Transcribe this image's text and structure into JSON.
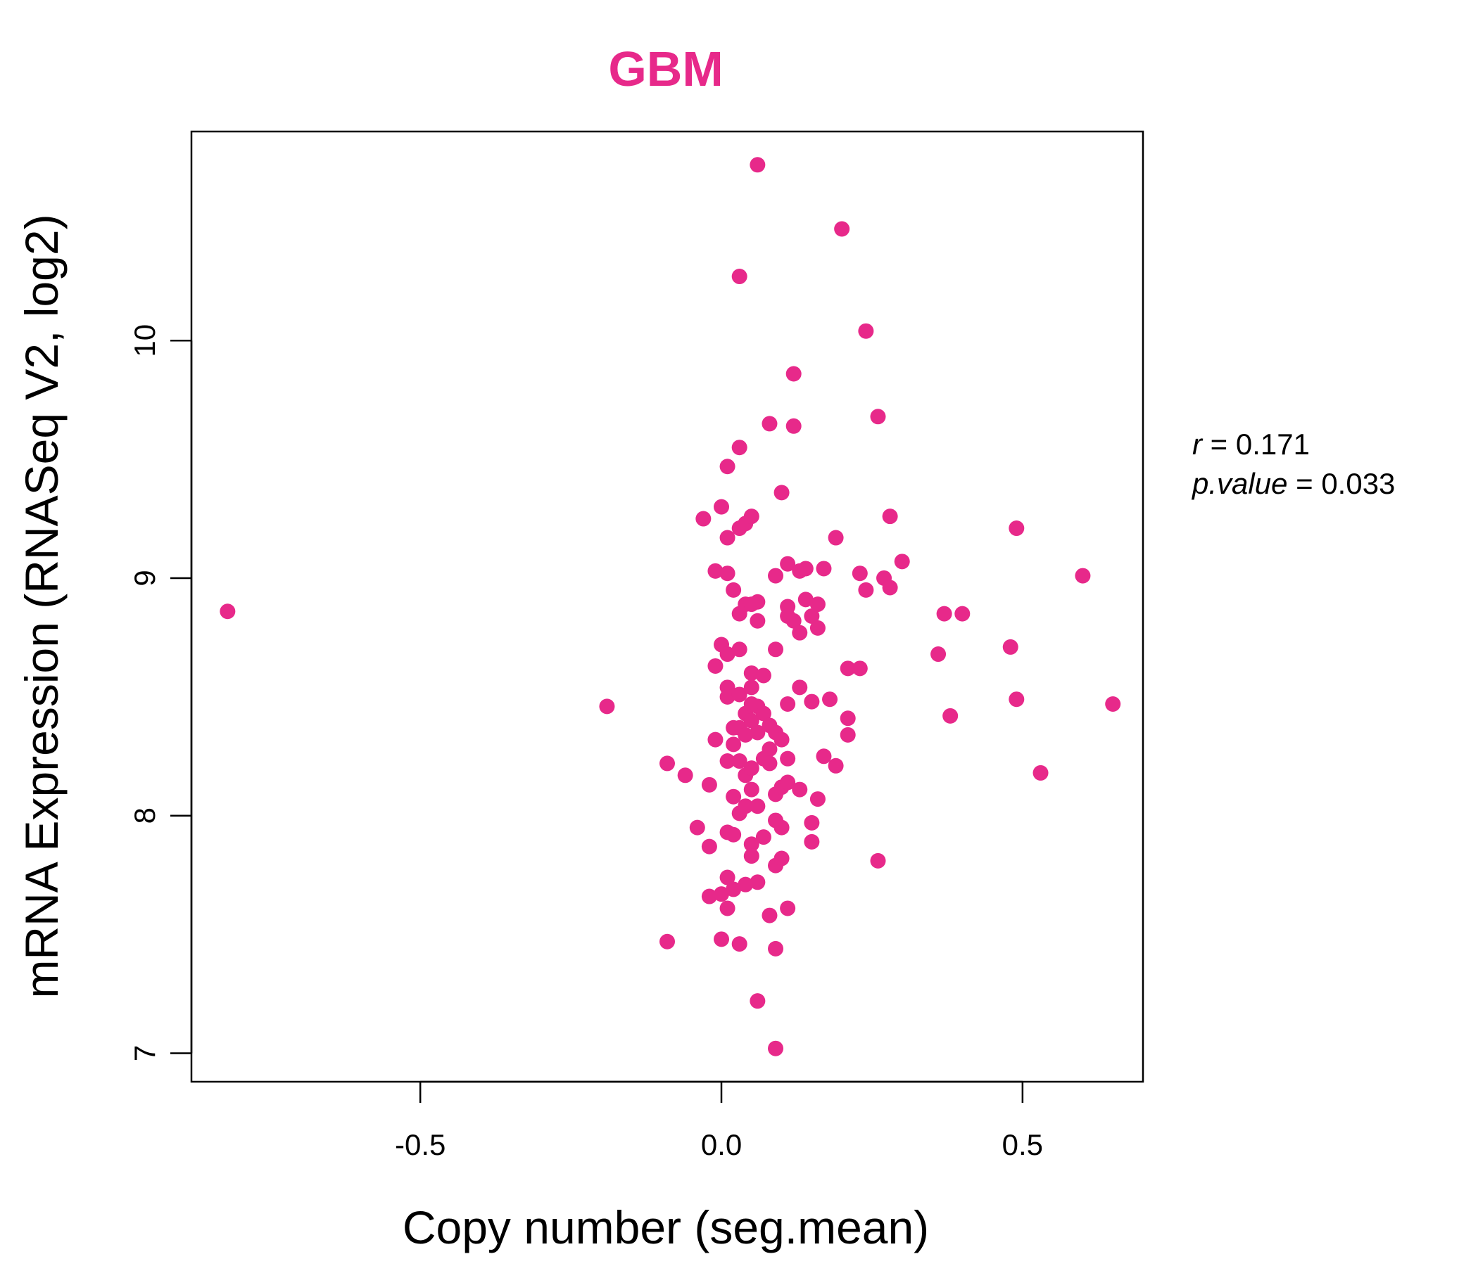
{
  "chart_data": {
    "type": "scatter",
    "title": "GBM",
    "xlabel": "Copy number (seg.mean)",
    "ylabel": "mRNA Expression (RNASeq V2, log2)",
    "xlim": [
      -0.88,
      0.7
    ],
    "ylim": [
      6.88,
      10.88
    ],
    "xticks": [
      "-0.5",
      "0.0",
      "0.5"
    ],
    "yticks": [
      "7",
      "8",
      "9",
      "10"
    ],
    "point_color": "#E7298A",
    "stats": {
      "r_label": "r",
      "r_value": "0.171",
      "p_label": "p.value",
      "p_value": "0.033"
    },
    "points": [
      [
        -0.82,
        8.86
      ],
      [
        -0.19,
        8.46
      ],
      [
        -0.09,
        8.22
      ],
      [
        -0.09,
        7.47
      ],
      [
        -0.06,
        8.17
      ],
      [
        -0.04,
        7.95
      ],
      [
        -0.03,
        9.25
      ],
      [
        -0.02,
        7.87
      ],
      [
        -0.02,
        7.66
      ],
      [
        -0.02,
        8.13
      ],
      [
        -0.01,
        9.03
      ],
      [
        -0.01,
        8.63
      ],
      [
        -0.01,
        8.32
      ],
      [
        0.0,
        9.3
      ],
      [
        0.0,
        8.72
      ],
      [
        0.0,
        7.67
      ],
      [
        0.0,
        7.48
      ],
      [
        0.01,
        9.47
      ],
      [
        0.01,
        9.17
      ],
      [
        0.01,
        9.02
      ],
      [
        0.01,
        8.68
      ],
      [
        0.01,
        8.54
      ],
      [
        0.01,
        8.5
      ],
      [
        0.01,
        8.23
      ],
      [
        0.01,
        7.93
      ],
      [
        0.01,
        7.74
      ],
      [
        0.01,
        7.61
      ],
      [
        0.02,
        8.95
      ],
      [
        0.02,
        8.37
      ],
      [
        0.02,
        8.3
      ],
      [
        0.02,
        8.08
      ],
      [
        0.02,
        7.92
      ],
      [
        0.02,
        7.69
      ],
      [
        0.03,
        10.27
      ],
      [
        0.03,
        9.55
      ],
      [
        0.03,
        9.21
      ],
      [
        0.03,
        8.85
      ],
      [
        0.03,
        8.7
      ],
      [
        0.03,
        8.51
      ],
      [
        0.03,
        8.37
      ],
      [
        0.03,
        8.23
      ],
      [
        0.03,
        8.01
      ],
      [
        0.03,
        7.46
      ],
      [
        0.04,
        9.23
      ],
      [
        0.04,
        8.89
      ],
      [
        0.04,
        8.43
      ],
      [
        0.04,
        8.34
      ],
      [
        0.04,
        8.17
      ],
      [
        0.04,
        8.04
      ],
      [
        0.04,
        7.71
      ],
      [
        0.05,
        9.26
      ],
      [
        0.05,
        8.89
      ],
      [
        0.05,
        8.6
      ],
      [
        0.05,
        8.54
      ],
      [
        0.05,
        8.47
      ],
      [
        0.05,
        8.4
      ],
      [
        0.05,
        8.2
      ],
      [
        0.05,
        8.11
      ],
      [
        0.05,
        7.88
      ],
      [
        0.05,
        7.83
      ],
      [
        0.06,
        10.74
      ],
      [
        0.06,
        8.9
      ],
      [
        0.06,
        8.82
      ],
      [
        0.06,
        8.46
      ],
      [
        0.06,
        8.35
      ],
      [
        0.06,
        8.04
      ],
      [
        0.06,
        7.72
      ],
      [
        0.06,
        7.22
      ],
      [
        0.07,
        8.59
      ],
      [
        0.07,
        8.43
      ],
      [
        0.07,
        8.24
      ],
      [
        0.07,
        7.91
      ],
      [
        0.08,
        9.65
      ],
      [
        0.08,
        8.38
      ],
      [
        0.08,
        8.28
      ],
      [
        0.08,
        8.22
      ],
      [
        0.08,
        7.58
      ],
      [
        0.09,
        9.01
      ],
      [
        0.09,
        8.7
      ],
      [
        0.09,
        8.35
      ],
      [
        0.09,
        8.09
      ],
      [
        0.09,
        7.98
      ],
      [
        0.09,
        7.79
      ],
      [
        0.09,
        7.44
      ],
      [
        0.09,
        7.02
      ],
      [
        0.1,
        9.36
      ],
      [
        0.1,
        8.32
      ],
      [
        0.1,
        8.12
      ],
      [
        0.1,
        7.82
      ],
      [
        0.1,
        7.95
      ],
      [
        0.11,
        9.06
      ],
      [
        0.11,
        8.88
      ],
      [
        0.11,
        8.84
      ],
      [
        0.11,
        8.47
      ],
      [
        0.11,
        8.24
      ],
      [
        0.11,
        8.14
      ],
      [
        0.11,
        7.61
      ],
      [
        0.12,
        9.86
      ],
      [
        0.12,
        9.64
      ],
      [
        0.12,
        8.82
      ],
      [
        0.13,
        9.03
      ],
      [
        0.13,
        8.77
      ],
      [
        0.13,
        8.54
      ],
      [
        0.13,
        8.11
      ],
      [
        0.14,
        9.04
      ],
      [
        0.14,
        8.91
      ],
      [
        0.15,
        8.84
      ],
      [
        0.15,
        8.48
      ],
      [
        0.15,
        7.97
      ],
      [
        0.15,
        7.89
      ],
      [
        0.16,
        8.89
      ],
      [
        0.16,
        8.79
      ],
      [
        0.16,
        8.07
      ],
      [
        0.17,
        9.04
      ],
      [
        0.17,
        8.25
      ],
      [
        0.18,
        8.49
      ],
      [
        0.19,
        9.17
      ],
      [
        0.19,
        8.21
      ],
      [
        0.2,
        10.47
      ],
      [
        0.21,
        8.62
      ],
      [
        0.21,
        8.41
      ],
      [
        0.21,
        8.34
      ],
      [
        0.23,
        8.62
      ],
      [
        0.23,
        9.02
      ],
      [
        0.24,
        10.04
      ],
      [
        0.24,
        8.95
      ],
      [
        0.26,
        9.68
      ],
      [
        0.26,
        7.81
      ],
      [
        0.27,
        9.0
      ],
      [
        0.28,
        9.26
      ],
      [
        0.28,
        8.96
      ],
      [
        0.3,
        9.07
      ],
      [
        0.36,
        8.68
      ],
      [
        0.37,
        8.85
      ],
      [
        0.38,
        8.42
      ],
      [
        0.4,
        8.85
      ],
      [
        0.48,
        8.71
      ],
      [
        0.49,
        9.21
      ],
      [
        0.49,
        8.49
      ],
      [
        0.53,
        8.18
      ],
      [
        0.6,
        9.01
      ],
      [
        0.65,
        8.47
      ]
    ]
  }
}
